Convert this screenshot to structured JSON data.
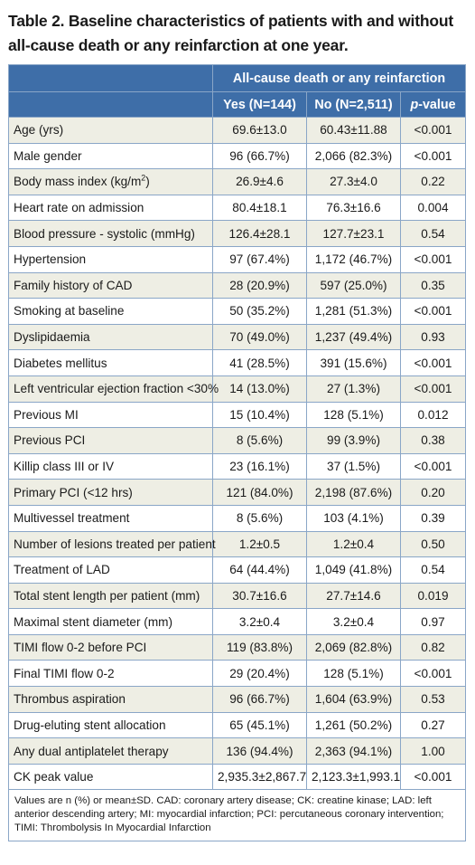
{
  "title_line1": "Table 2. Baseline characteristics of patients with and without",
  "title_line2": "all-cause death or any reinfarction at one year.",
  "header": {
    "group": "All-cause death or any reinfarction",
    "yes": "Yes (N=144)",
    "no": "No (N=2,511)",
    "p_italic": "p",
    "p_rest": "-value"
  },
  "rows": [
    {
      "label": "Age (yrs)",
      "yes": "69.6±13.0",
      "no": "60.43±11.88",
      "p": "<0.001"
    },
    {
      "label": "Male gender",
      "yes": "96 (66.7%)",
      "no": "2,066 (82.3%)",
      "p": "<0.001"
    },
    {
      "label": "Body mass index (kg/m",
      "label_sup": "2",
      "label_end": ")",
      "yes": "26.9±4.6",
      "no": "27.3±4.0",
      "p": "0.22"
    },
    {
      "label": "Heart rate on admission",
      "yes": "80.4±18.1",
      "no": "76.3±16.6",
      "p": "0.004"
    },
    {
      "label": "Blood pressure - systolic (mmHg)",
      "yes": "126.4±28.1",
      "no": "127.7±23.1",
      "p": "0.54"
    },
    {
      "label": "Hypertension",
      "yes": "97 (67.4%)",
      "no": "1,172 (46.7%)",
      "p": "<0.001"
    },
    {
      "label": "Family history of CAD",
      "yes": "28 (20.9%)",
      "no": "597 (25.0%)",
      "p": "0.35"
    },
    {
      "label": "Smoking at baseline",
      "yes": "50 (35.2%)",
      "no": "1,281 (51.3%)",
      "p": "<0.001"
    },
    {
      "label": "Dyslipidaemia",
      "yes": "70 (49.0%)",
      "no": "1,237 (49.4%)",
      "p": "0.93"
    },
    {
      "label": "Diabetes mellitus",
      "yes": "41 (28.5%)",
      "no": "391 (15.6%)",
      "p": "<0.001"
    },
    {
      "label": "Left ventricular ejection fraction <30%",
      "yes": "14 (13.0%)",
      "no": "27 (1.3%)",
      "p": "<0.001"
    },
    {
      "label": "Previous MI",
      "yes": "15 (10.4%)",
      "no": "128 (5.1%)",
      "p": "0.012"
    },
    {
      "label": "Previous PCI",
      "yes": "8 (5.6%)",
      "no": "99 (3.9%)",
      "p": "0.38"
    },
    {
      "label": "Killip class III or IV",
      "yes": "23 (16.1%)",
      "no": "37 (1.5%)",
      "p": "<0.001"
    },
    {
      "label": "Primary PCI (<12 hrs)",
      "yes": "121 (84.0%)",
      "no": "2,198 (87.6%)",
      "p": "0.20"
    },
    {
      "label": "Multivessel treatment",
      "yes": "8 (5.6%)",
      "no": "103 (4.1%)",
      "p": "0.39"
    },
    {
      "label": "Number of lesions treated per patient",
      "yes": "1.2±0.5",
      "no": "1.2±0.4",
      "p": "0.50"
    },
    {
      "label": "Treatment of LAD",
      "yes": "64 (44.4%)",
      "no": "1,049 (41.8%)",
      "p": "0.54"
    },
    {
      "label": "Total stent length per patient (mm)",
      "yes": "30.7±16.6",
      "no": "27.7±14.6",
      "p": "0.019"
    },
    {
      "label": "Maximal stent diameter (mm)",
      "yes": "3.2±0.4",
      "no": "3.2±0.4",
      "p": "0.97"
    },
    {
      "label": "TIMI flow 0-2 before PCI",
      "yes": "119 (83.8%)",
      "no": "2,069 (82.8%)",
      "p": "0.82"
    },
    {
      "label": "Final TIMI flow 0-2",
      "yes": "29 (20.4%)",
      "no": "128 (5.1%)",
      "p": "<0.001"
    },
    {
      "label": "Thrombus aspiration",
      "yes": "96 (66.7%)",
      "no": "1,604 (63.9%)",
      "p": "0.53"
    },
    {
      "label": "Drug-eluting stent allocation",
      "yes": "65 (45.1%)",
      "no": "1,261 (50.2%)",
      "p": "0.27"
    },
    {
      "label": "Any dual antiplatelet therapy",
      "yes": "136 (94.4%)",
      "no": "2,363 (94.1%)",
      "p": "1.00"
    },
    {
      "label": "CK peak value",
      "yes": "2,935.3±2,867.7",
      "no": "2,123.3±1,993.1",
      "p": "<0.001"
    }
  ],
  "footnote": "Values are n (%) or mean±SD. CAD: coronary artery disease; CK: creatine kinase; LAD: left anterior descending artery; MI: myocardial infarction; PCI: percutaneous coronary intervention; TIMI: Thrombolysis In Myocardial Infarction",
  "colors": {
    "header_bg": "#3e6ea8",
    "stripe_bg": "#eeeee4",
    "border": "#8aa6c7"
  }
}
